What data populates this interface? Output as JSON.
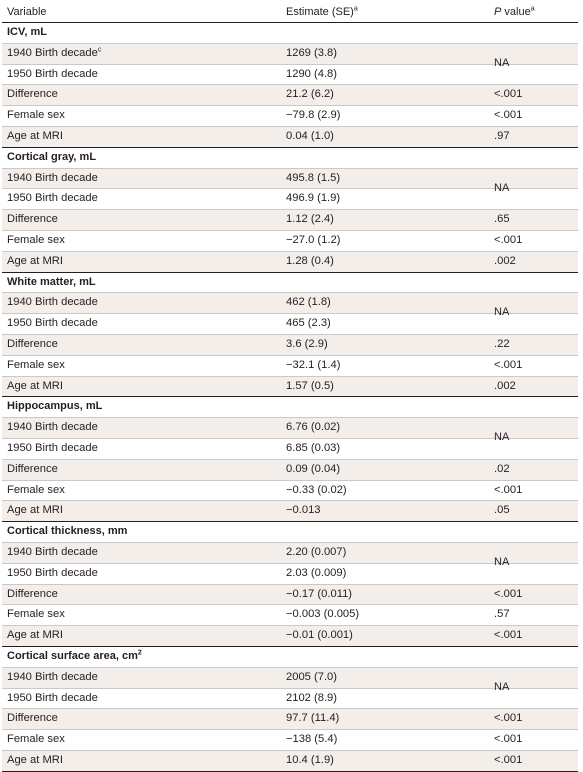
{
  "header": {
    "variable": "Variable",
    "estimate": "Estimate (SE)",
    "estimate_sup": "a",
    "pvalue_p": "P",
    "pvalue_rest": " value",
    "pvalue_sup": "a"
  },
  "sections": [
    {
      "title": "ICV, mL",
      "na": "NA",
      "rows": [
        {
          "label": "1940 Birth decade",
          "sup": "c",
          "estimate": "1269 (3.8)",
          "p": ""
        },
        {
          "label": "1950 Birth decade",
          "sup": "",
          "estimate": "1290 (4.8)",
          "p": ""
        },
        {
          "label": "Difference",
          "sup": "",
          "estimate": "21.2 (6.2)",
          "p": "<.001"
        },
        {
          "label": "Female sex",
          "sup": "",
          "estimate": "−79.8 (2.9)",
          "p": "<.001"
        },
        {
          "label": "Age at MRI",
          "sup": "",
          "estimate": "0.04 (1.0)",
          "p": ".97"
        }
      ]
    },
    {
      "title": "Cortical gray, mL",
      "na": "NA",
      "rows": [
        {
          "label": "1940 Birth decade",
          "sup": "",
          "estimate": "495.8 (1.5)",
          "p": ""
        },
        {
          "label": "1950 Birth decade",
          "sup": "",
          "estimate": "496.9 (1.9)",
          "p": ""
        },
        {
          "label": "Difference",
          "sup": "",
          "estimate": "1.12 (2.4)",
          "p": ".65"
        },
        {
          "label": "Female sex",
          "sup": "",
          "estimate": "−27.0 (1.2)",
          "p": "<.001"
        },
        {
          "label": "Age at MRI",
          "sup": "",
          "estimate": "1.28 (0.4)",
          "p": ".002"
        }
      ]
    },
    {
      "title": "White matter, mL",
      "na": "NA",
      "rows": [
        {
          "label": "1940 Birth decade",
          "sup": "",
          "estimate": "462 (1.8)",
          "p": ""
        },
        {
          "label": "1950 Birth decade",
          "sup": "",
          "estimate": "465 (2.3)",
          "p": ""
        },
        {
          "label": "Difference",
          "sup": "",
          "estimate": "3.6 (2.9)",
          "p": ".22"
        },
        {
          "label": "Female sex",
          "sup": "",
          "estimate": "−32.1 (1.4)",
          "p": "<.001"
        },
        {
          "label": "Age at MRI",
          "sup": "",
          "estimate": "1.57 (0.5)",
          "p": ".002"
        }
      ]
    },
    {
      "title": "Hippocampus, mL",
      "na": "NA",
      "rows": [
        {
          "label": "1940 Birth decade",
          "sup": "",
          "estimate": "6.76 (0.02)",
          "p": ""
        },
        {
          "label": "1950 Birth decade",
          "sup": "",
          "estimate": "6.85 (0.03)",
          "p": ""
        },
        {
          "label": "Difference",
          "sup": "",
          "estimate": "0.09 (0.04)",
          "p": ".02"
        },
        {
          "label": "Female sex",
          "sup": "",
          "estimate": "−0.33 (0.02)",
          "p": "<.001"
        },
        {
          "label": "Age at MRI",
          "sup": "",
          "estimate": "−0.013",
          "p": ".05"
        }
      ]
    },
    {
      "title": "Cortical thickness, mm",
      "na": "NA",
      "rows": [
        {
          "label": "1940 Birth decade",
          "sup": "",
          "estimate": "2.20 (0.007)",
          "p": ""
        },
        {
          "label": "1950 Birth decade",
          "sup": "",
          "estimate": "2.03 (0.009)",
          "p": ""
        },
        {
          "label": "Difference",
          "sup": "",
          "estimate": "−0.17 (0.011)",
          "p": "<.001"
        },
        {
          "label": "Female sex",
          "sup": "",
          "estimate": "−0.003 (0.005)",
          "p": ".57"
        },
        {
          "label": "Age at MRI",
          "sup": "",
          "estimate": "−0.01 (0.001)",
          "p": "<.001"
        }
      ]
    },
    {
      "title": "Cortical surface area, cm",
      "title_sup": "2",
      "na": "NA",
      "rows": [
        {
          "label": "1940 Birth decade",
          "sup": "",
          "estimate": "2005 (7.0)",
          "p": ""
        },
        {
          "label": "1950 Birth decade",
          "sup": "",
          "estimate": "2102 (8.9)",
          "p": ""
        },
        {
          "label": "Difference",
          "sup": "",
          "estimate": "97.7 (11.4)",
          "p": "<.001"
        },
        {
          "label": "Female sex",
          "sup": "",
          "estimate": "−138 (5.4)",
          "p": "<.001"
        },
        {
          "label": "Age at MRI",
          "sup": "",
          "estimate": "10.4 (1.9)",
          "p": "<.001"
        }
      ]
    }
  ]
}
